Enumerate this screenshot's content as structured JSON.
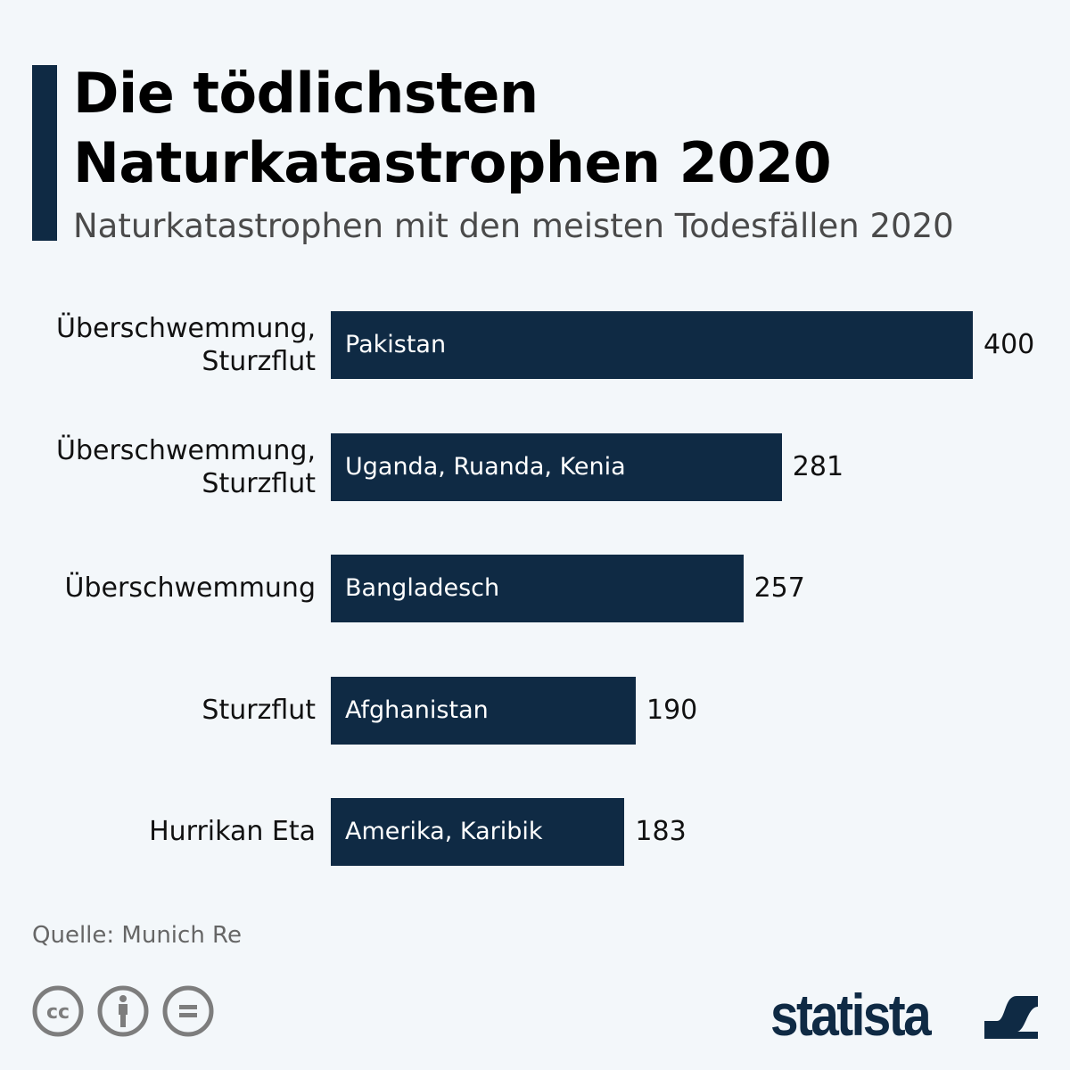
{
  "title_line1": "Die tödlichsten",
  "title_line2": "Naturkatastrophen 2020",
  "subtitle": "Naturkatastrophen mit den meisten Todesfällen 2020",
  "source": "Quelle: Munich Re",
  "logo": "statista",
  "colors": {
    "bar": "#0f2a44",
    "background": "#f3f7fa"
  },
  "chart_data": {
    "type": "bar",
    "orientation": "horizontal",
    "title": "Die tödlichsten Naturkatastrophen 2020",
    "categories": [
      {
        "line1": "Überschwemmung,",
        "line2": "Sturzflut",
        "region": "Pakistan"
      },
      {
        "line1": "Überschwemmung,",
        "line2": "Sturzflut",
        "region": "Uganda, Ruanda, Kenia"
      },
      {
        "line1": "Überschwemmung",
        "line2": "",
        "region": "Bangladesch"
      },
      {
        "line1": "Sturzflut",
        "line2": "",
        "region": "Afghanistan"
      },
      {
        "line1": "Hurrikan Eta",
        "line2": "",
        "region": "Amerika, Karibik"
      }
    ],
    "values": [
      400,
      281,
      257,
      190,
      183
    ],
    "xlim": [
      0,
      400
    ],
    "grid": false
  }
}
